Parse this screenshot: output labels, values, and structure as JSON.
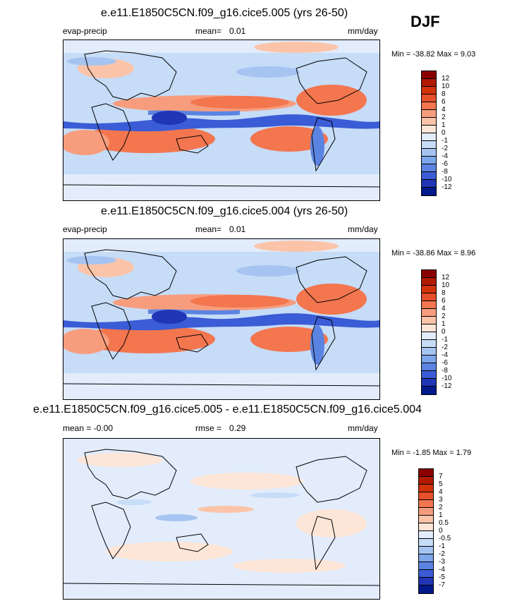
{
  "season": "DJF",
  "panels": [
    {
      "title": "e.e11.E1850C5CN.f09_g16.cice5.005 (yrs 26-50)",
      "left_label": "evap-precip",
      "mean_label": "mean=",
      "mean_value": "0.01",
      "units": "mm/day",
      "minmax": "Min = -38.82 Max =   9.03",
      "levels": [
        "12",
        "10",
        "8",
        "6",
        "4",
        "2",
        "1",
        "0",
        "-1",
        "-2",
        "-4",
        "-6",
        "-8",
        "-10",
        "-12"
      ],
      "colors": [
        "#8a0000",
        "#b01a00",
        "#d2330b",
        "#e6502a",
        "#f3764f",
        "#f79d7e",
        "#fbc4a9",
        "#fde6d8",
        "#e2ecfb",
        "#c6dcf7",
        "#a6c4f1",
        "#7ea6ea",
        "#5b84e2",
        "#3a5cd6",
        "#2036b6",
        "#001a8c"
      ]
    },
    {
      "title": "e.e11.E1850C5CN.f09_g16.cice5.004 (yrs 26-50)",
      "left_label": "evap-precip",
      "mean_label": "mean=",
      "mean_value": "0.01",
      "units": "mm/day",
      "minmax": "Min = -38.86 Max =   8.96",
      "levels": [
        "12",
        "10",
        "8",
        "6",
        "4",
        "2",
        "1",
        "0",
        "-1",
        "-2",
        "-4",
        "-6",
        "-8",
        "-10",
        "-12"
      ],
      "colors": [
        "#8a0000",
        "#b01a00",
        "#d2330b",
        "#e6502a",
        "#f3764f",
        "#f79d7e",
        "#fbc4a9",
        "#fde6d8",
        "#e2ecfb",
        "#c6dcf7",
        "#a6c4f1",
        "#7ea6ea",
        "#5b84e2",
        "#3a5cd6",
        "#2036b6",
        "#001a8c"
      ]
    },
    {
      "title": "e.e11.E1850C5CN.f09_g16.cice5.005 - e.e11.E1850C5CN.f09_g16.cice5.004",
      "left_label": "mean =  -0.00",
      "mean_label": "rmse =",
      "mean_value": "0.29",
      "units": "mm/day",
      "minmax": "Min =  -1.85 Max =   1.79",
      "levels": [
        "7",
        "5",
        "4",
        "3",
        "2",
        "1",
        "0.5",
        "0",
        "-0.5",
        "-1",
        "-2",
        "-3",
        "-4",
        "-5",
        "-7"
      ],
      "colors": [
        "#8a0000",
        "#b01a00",
        "#d2330b",
        "#e6502a",
        "#f3764f",
        "#f79d7e",
        "#fbc4a9",
        "#fde6d8",
        "#e2ecfb",
        "#c6dcf7",
        "#a6c4f1",
        "#7ea6ea",
        "#5b84e2",
        "#3a5cd6",
        "#2036b6",
        "#001a8c"
      ]
    }
  ],
  "chart_data": [
    {
      "type": "heatmap",
      "title": "e.e11.E1850C5CN.f09_g16.cice5.005 (yrs 26-50)",
      "variable": "evap-precip",
      "units": "mm/day",
      "mean": 0.01,
      "min": -38.82,
      "max": 9.03,
      "levels": [
        -12,
        -10,
        -8,
        -6,
        -4,
        -2,
        -1,
        0,
        1,
        2,
        4,
        6,
        8,
        10,
        12
      ]
    },
    {
      "type": "heatmap",
      "title": "e.e11.E1850C5CN.f09_g16.cice5.004 (yrs 26-50)",
      "variable": "evap-precip",
      "units": "mm/day",
      "mean": 0.01,
      "min": -38.86,
      "max": 8.96,
      "levels": [
        -12,
        -10,
        -8,
        -6,
        -4,
        -2,
        -1,
        0,
        1,
        2,
        4,
        6,
        8,
        10,
        12
      ]
    },
    {
      "type": "heatmap",
      "title": "e.e11.E1850C5CN.f09_g16.cice5.005 - e.e11.E1850C5CN.f09_g16.cice5.004",
      "units": "mm/day",
      "mean": -0.0,
      "rmse": 0.29,
      "min": -1.85,
      "max": 1.79,
      "levels": [
        -7,
        -5,
        -4,
        -3,
        -2,
        -1,
        -0.5,
        0,
        0.5,
        1,
        2,
        3,
        4,
        5,
        7
      ]
    }
  ]
}
